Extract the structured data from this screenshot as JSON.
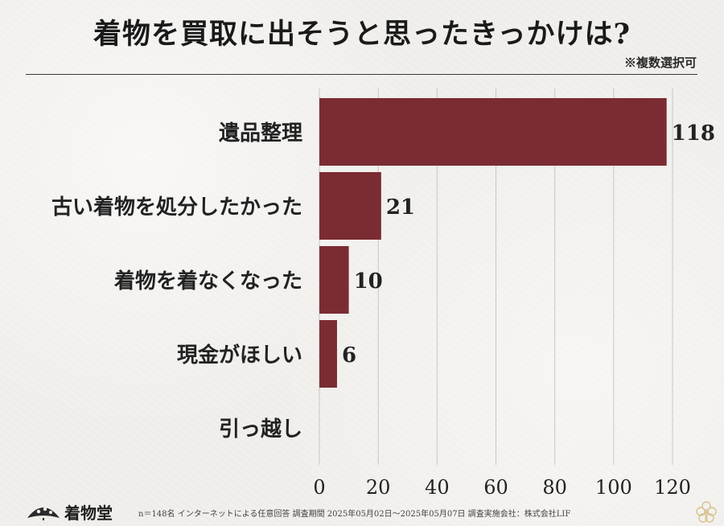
{
  "title": "着物を買取に出そうと思ったきっかけは?",
  "subnote": "※複数選択可",
  "footer": {
    "brand": "着物堂",
    "note": "n＝148名 インターネットによる任意回答 調査期間 2025年05月02日～2025年05月07日 調査実施会社：株式会社LIF",
    "logo_icon": "fan-logo-icon",
    "decor_icon": "flower-icon"
  },
  "colors": {
    "bar": "#7b2c33",
    "grid": "#c9c6c2",
    "text": "#222222"
  },
  "chart_data": {
    "type": "bar",
    "orientation": "horizontal",
    "categories": [
      "遺品整理",
      "古い着物を処分したかった",
      "着物を着なくなった",
      "現金がほしい",
      "引っ越し"
    ],
    "values": [
      118,
      21,
      10,
      6,
      null
    ],
    "value_labels": [
      "118",
      "21",
      "10",
      "6",
      ""
    ],
    "xlim": [
      0,
      120
    ],
    "xticks": [
      "0",
      "20",
      "40",
      "60",
      "80",
      "100",
      "120"
    ],
    "grid": "vertical",
    "title": "着物を買取に出そうと思ったきっかけは?",
    "xlabel": "",
    "ylabel": ""
  }
}
